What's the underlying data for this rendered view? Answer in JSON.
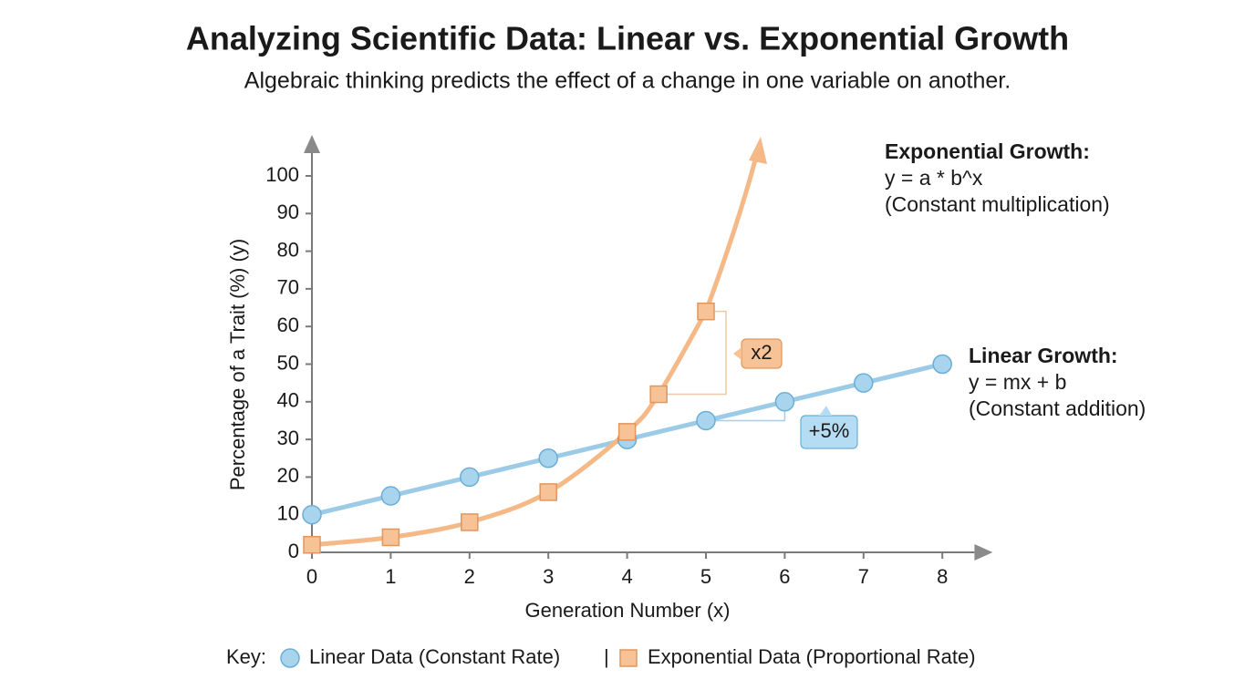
{
  "chart_data": {
    "type": "line",
    "title": "Analyzing Scientific Data: Linear vs. Exponential Growth",
    "subtitle": "Algebraic thinking predicts the effect of a change in one variable on another.",
    "x_label": "Generation Number (x)",
    "y_label": "Percentage of a Trait (%) (y)",
    "xlim": [
      0,
      8.5
    ],
    "ylim": [
      0,
      108
    ],
    "xticks": [
      0,
      1,
      2,
      3,
      4,
      5,
      6,
      7,
      8
    ],
    "yticks": [
      0,
      10,
      20,
      30,
      40,
      50,
      60,
      70,
      80,
      90,
      100
    ],
    "series": [
      {
        "name": "Linear Data (Constant Rate)",
        "color": "#9ccbe8",
        "marker": "circle",
        "x": [
          0,
          1,
          2,
          3,
          4,
          5,
          6,
          7,
          8
        ],
        "values": [
          10,
          15,
          20,
          25,
          30,
          35,
          40,
          45,
          50
        ]
      },
      {
        "name": "Exponential Data (Proportional Rate)",
        "color": "#f4b987",
        "marker": "square",
        "x": [
          0,
          1,
          2,
          3,
          4,
          4.4,
          5
        ],
        "values": [
          2,
          4,
          8,
          16,
          32,
          42,
          64
        ]
      }
    ],
    "annotations": [
      {
        "text": "x2"
      },
      {
        "text": "+5%"
      }
    ],
    "notes": [
      {
        "title": "Exponential Growth:",
        "lines": [
          "y = a * b^x",
          "(Constant multiplication)"
        ]
      },
      {
        "title": "Linear Growth:",
        "lines": [
          "y = mx + b",
          "(Constant addition)"
        ]
      }
    ],
    "legend": {
      "title": "Key:",
      "separator": "|"
    }
  }
}
